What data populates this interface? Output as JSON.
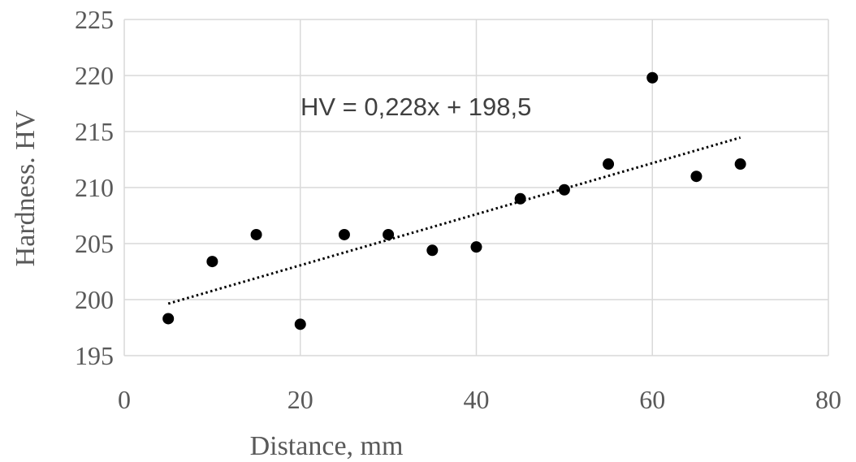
{
  "chart_data": {
    "type": "scatter",
    "xlabel": "Distance, mm",
    "ylabel": "Hardness. HV",
    "xlim": [
      0,
      80
    ],
    "ylim": [
      195,
      225
    ],
    "xticks": [
      "0",
      "20",
      "40",
      "60",
      "80"
    ],
    "yticks": [
      "195",
      "200",
      "205",
      "210",
      "215",
      "220",
      "225"
    ],
    "grid": true,
    "series": [
      {
        "x": [
          5,
          10,
          15,
          20,
          25,
          30,
          35,
          40,
          45,
          50,
          55,
          60,
          65,
          70
        ],
        "y": [
          198.3,
          203.4,
          205.8,
          197.8,
          205.8,
          205.8,
          204.4,
          204.7,
          209.0,
          209.8,
          212.1,
          219.8,
          211.0,
          212.1
        ],
        "color": "#000000"
      }
    ],
    "trendline": {
      "type": "linear",
      "slope": 0.228,
      "intercept": 198.5,
      "x_range": [
        5,
        70
      ],
      "style": "dotted",
      "equation_label": "HV = 0,228x + 198,5"
    }
  }
}
